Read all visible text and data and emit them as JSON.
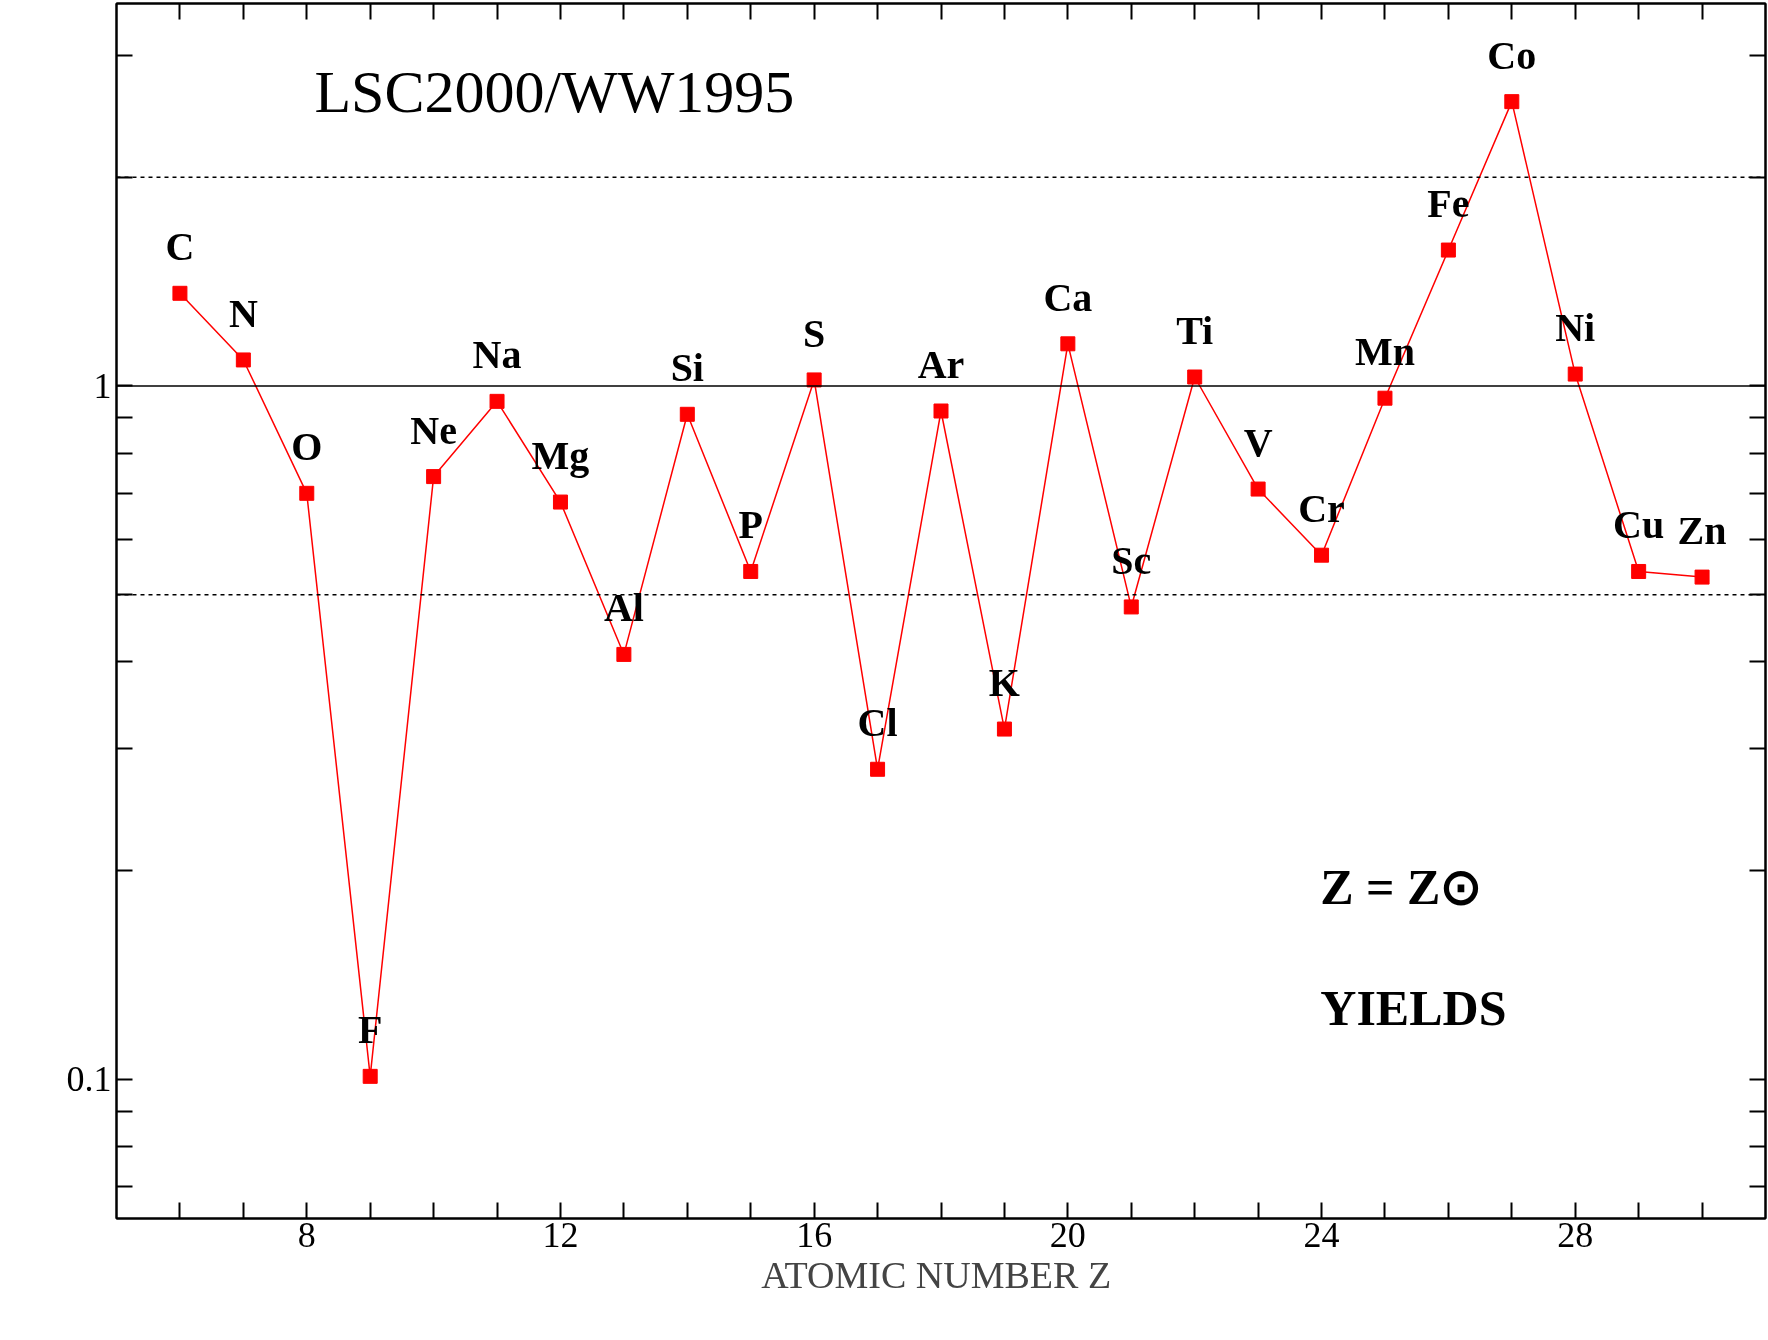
{
  "chart_data": {
    "type": "line",
    "xlabel": "ATOMIC NUMBER  Z",
    "x": [
      6,
      7,
      8,
      9,
      10,
      11,
      12,
      13,
      14,
      15,
      16,
      17,
      18,
      19,
      20,
      21,
      22,
      23,
      24,
      25,
      26,
      27,
      28,
      29,
      30
    ],
    "series": [
      {
        "color": "#ff0000",
        "values": [
          1.36,
          1.09,
          0.7,
          0.101,
          0.74,
          0.95,
          0.68,
          0.41,
          0.91,
          0.54,
          1.02,
          0.28,
          0.92,
          0.32,
          1.15,
          0.48,
          1.03,
          0.71,
          0.57,
          0.96,
          1.57,
          2.57,
          1.04,
          0.54,
          0.53
        ]
      }
    ],
    "marker": "square",
    "line_style": "solid",
    "log": "y",
    "grid": false,
    "xlim": [
      5,
      31
    ],
    "ylim": [
      0.063,
      3.56
    ],
    "xticks": [
      {
        "value": 6,
        "label": null
      },
      {
        "value": 7,
        "label": null
      },
      8,
      {
        "value": 9,
        "label": null
      },
      {
        "value": 10,
        "label": null
      },
      {
        "value": 11,
        "label": null
      },
      12,
      {
        "value": 13,
        "label": null
      },
      {
        "value": 14,
        "label": null
      },
      {
        "value": 15,
        "label": null
      },
      16,
      {
        "value": 17,
        "label": null
      },
      {
        "value": 18,
        "label": null
      },
      {
        "value": 19,
        "label": null
      },
      20,
      {
        "value": 21,
        "label": null
      },
      {
        "value": 22,
        "label": null
      },
      {
        "value": 23,
        "label": null
      },
      24,
      {
        "value": 25,
        "label": null
      },
      {
        "value": 26,
        "label": null
      },
      {
        "value": 27,
        "label": null
      },
      28,
      {
        "value": 29,
        "label": null
      },
      {
        "value": 30,
        "label": null
      }
    ],
    "yticks": [
      {
        "value": 0.07,
        "label": null
      },
      {
        "value": 0.08,
        "label": null
      },
      {
        "value": 0.09,
        "label": null
      },
      0.1,
      {
        "value": 0.2,
        "label": null
      },
      {
        "value": 0.3,
        "label": null
      },
      {
        "value": 0.4,
        "label": null
      },
      {
        "value": 0.5,
        "label": null
      },
      {
        "value": 0.6,
        "label": null
      },
      {
        "value": 0.7,
        "label": null
      },
      {
        "value": 0.8,
        "label": null
      },
      {
        "value": 0.9,
        "label": null
      },
      1,
      {
        "value": 2,
        "label": null
      },
      {
        "value": 3,
        "label": null
      }
    ],
    "ref_lines": [
      {
        "axis": "y",
        "value": 2,
        "line_style": "dotted",
        "color": "#000000"
      },
      {
        "axis": "y",
        "value": 1,
        "line_style": "solid",
        "color": "#000000"
      },
      {
        "axis": "y",
        "value": 0.5,
        "line_style": "dotted",
        "color": "#000000"
      }
    ],
    "annotations": [
      "LSC2000/WW1995",
      "Z  =  Z⊙",
      "YIELDS",
      {
        "text": "C",
        "x": 6,
        "y": 1.36
      },
      {
        "text": "N",
        "x": 7,
        "y": 1.09
      },
      {
        "text": "O",
        "x": 8,
        "y": 0.7
      },
      {
        "text": "F",
        "x": 9,
        "y": 0.101
      },
      {
        "text": "Ne",
        "x": 10,
        "y": 0.74
      },
      {
        "text": "Na",
        "x": 11,
        "y": 0.95
      },
      {
        "text": "Mg",
        "x": 12,
        "y": 0.68
      },
      {
        "text": "Al",
        "x": 13,
        "y": 0.41
      },
      {
        "text": "Si",
        "x": 14,
        "y": 0.91
      },
      {
        "text": "P",
        "x": 15,
        "y": 0.54
      },
      {
        "text": "S",
        "x": 16,
        "y": 1.02
      },
      {
        "text": "Cl",
        "x": 17,
        "y": 0.28
      },
      {
        "text": "Ar",
        "x": 18,
        "y": 0.92
      },
      {
        "text": "K",
        "x": 19,
        "y": 0.32
      },
      {
        "text": "Ca",
        "x": 20,
        "y": 1.15
      },
      {
        "text": "Sc",
        "x": 21,
        "y": 0.48
      },
      {
        "text": "Ti",
        "x": 22,
        "y": 1.03
      },
      {
        "text": "V",
        "x": 23,
        "y": 0.71
      },
      {
        "text": "Cr",
        "x": 24,
        "y": 0.57
      },
      {
        "text": "Mn",
        "x": 25,
        "y": 0.96
      },
      {
        "text": "Fe",
        "x": 26,
        "y": 1.57
      },
      {
        "text": "Co",
        "x": 27,
        "y": 2.57
      },
      {
        "text": "Ni",
        "x": 28,
        "y": 1.04
      },
      {
        "text": "Cu",
        "x": 29,
        "y": 0.54
      },
      {
        "text": "Zn",
        "x": 30,
        "y": 0.53
      }
    ]
  }
}
